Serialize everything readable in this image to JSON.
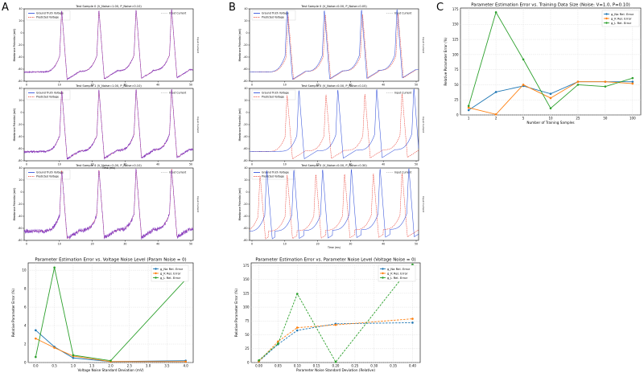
{
  "panel_labels": {
    "a": "A",
    "b": "B",
    "c": "C"
  },
  "colors": {
    "blue": "#1f3fd6",
    "orange": "#ff7f0e",
    "green": "#2ca02c",
    "predicted": "#e8392e",
    "teal": "#1f77b4",
    "purple": "#7b2fbe"
  },
  "chart_data": [
    {
      "id": "a1",
      "type": "line",
      "title": "Test Sample 0 (V_Noise=1.00, P_Noise=0.10)",
      "ylabel": "Membrane Potential (mV)",
      "xlabel": "",
      "right_label": "Input Current",
      "legend": [
        "Ground Truth Voltage",
        "Predicted Voltage"
      ],
      "xlim": [
        0,
        50
      ],
      "ylim": [
        -80,
        40
      ],
      "yticks": [
        "-80",
        "-60",
        "-40",
        "-20",
        "0",
        "20",
        "40"
      ],
      "xticks": [
        "0",
        "10",
        "20",
        "30",
        "40",
        "50"
      ],
      "spike_times": [
        10.5,
        21.5,
        32.5,
        43.0
      ],
      "baseline_mv": -65,
      "peak_mv": 38,
      "offset_ms": 0,
      "noise_mv": 1.0
    },
    {
      "id": "a2",
      "type": "line",
      "title": "Test Sample 1 (V_Noise=1.00, P_Noise=0.10)",
      "ylabel": "Membrane Potential (mV)",
      "xlabel": "Time (ms)",
      "right_label": "Input Current",
      "legend": [
        "Ground Truth Voltage",
        "Predicted Voltage"
      ],
      "xlim": [
        0,
        50
      ],
      "ylim": [
        -80,
        40
      ],
      "yticks": [
        "-80",
        "-60",
        "-40",
        "-20",
        "0",
        "20",
        "40"
      ],
      "xticks": [
        "0",
        "10",
        "20",
        "30",
        "40",
        "50"
      ],
      "spike_times": [
        10.5,
        21.5,
        32.5,
        43.0
      ],
      "baseline_mv": -65,
      "peak_mv": 38,
      "offset_ms": 0,
      "noise_mv": 2.0
    },
    {
      "id": "a3",
      "type": "line",
      "title": "Test Sample 4 (V_Noise=2.00, P_Noise=0.10)",
      "ylabel": "Membrane Potential (mV)",
      "xlabel": "",
      "right_label": "Input Current",
      "legend": [
        "Ground Truth Voltage",
        "Predicted Voltage"
      ],
      "xlim": [
        0,
        50
      ],
      "ylim": [
        -80,
        40
      ],
      "yticks": [
        "-80",
        "-60",
        "-40",
        "-20",
        "0",
        "20",
        "40"
      ],
      "xticks": [
        "0",
        "10",
        "20",
        "30",
        "40",
        "50"
      ],
      "spike_times": [
        10.5,
        21.5,
        32.5,
        43.0
      ],
      "baseline_mv": -65,
      "peak_mv": 38,
      "offset_ms": 0,
      "noise_mv": 3.5
    },
    {
      "id": "b1",
      "type": "line",
      "title": "Test Sample 0 (V_Noise=0.00, P_Noise=0.05)",
      "ylabel": "Membrane Potential (mV)",
      "xlabel": "",
      "right_label": "Input Current",
      "legend": [
        "Ground Truth Voltage",
        "Predicted Voltage"
      ],
      "xlim": [
        0,
        50
      ],
      "ylim": [
        -80,
        40
      ],
      "yticks": [
        "-80",
        "-60",
        "-40",
        "-20",
        "0",
        "20",
        "40"
      ],
      "xticks": [
        "0",
        "10",
        "20",
        "30",
        "40",
        "50"
      ],
      "spike_times": [
        10.5,
        21.5,
        32.5,
        43.0
      ],
      "baseline_mv": -65,
      "peak_mv": 38,
      "offset_ms": 0.3,
      "noise_mv": 0
    },
    {
      "id": "b2",
      "type": "line",
      "title": "Test Sample 0 (V_Noise=0.00, P_Noise=0.10)",
      "ylabel": "Membrane Potential (mV)",
      "xlabel": "",
      "right_label": "Input Current",
      "legend": [
        "Ground Truth Voltage",
        "Predicted Voltage"
      ],
      "xlim": [
        0,
        50
      ],
      "ylim": [
        -80,
        40
      ],
      "yticks": [
        "-80",
        "-60",
        "-40",
        "-20",
        "0",
        "20",
        "40"
      ],
      "xticks": [
        "0",
        "10",
        "20",
        "30",
        "40",
        "50"
      ],
      "spike_times": [
        14.0,
        25.5,
        37.0,
        48.0
      ],
      "baseline_mv": -65,
      "peak_mv": 38,
      "offset_ms": -3.5,
      "noise_mv": 0
    },
    {
      "id": "b3",
      "type": "line",
      "title": "Test Sample 0 (V_Noise=0.00, P_Noise=0.30)",
      "ylabel": "Membrane Potential (mV)",
      "xlabel": "Time (ms)",
      "right_label": "Input Current",
      "legend": [
        "Ground Truth Voltage",
        "Predicted Voltage"
      ],
      "xlim": [
        0,
        50
      ],
      "ylim": [
        -80,
        40
      ],
      "yticks": [
        "-80",
        "-60",
        "-40",
        "-20",
        "0",
        "20",
        "40"
      ],
      "xticks": [
        "0",
        "10",
        "20",
        "30",
        "40",
        "50"
      ],
      "spike_times": [
        4.5,
        12.5,
        21.0,
        29.5,
        38.0,
        46.5
      ],
      "baseline_mv": -65,
      "peak_mv": 38,
      "offset_ms": -2.0,
      "noise_mv": 0
    },
    {
      "id": "a4",
      "type": "line",
      "title": "Parameter Estimation Error vs. Voltage Noise Level (Param Noise = 0)",
      "xlabel": "Voltage Noise Standard Deviation (mV)",
      "ylabel": "Relative Parameter Error (%)",
      "x": [
        0.0,
        0.5,
        1.0,
        2.0,
        4.0
      ],
      "xlim": [
        -0.2,
        4.2
      ],
      "ylim": [
        0,
        10.8
      ],
      "xticks": [
        "0.0",
        "0.5",
        "1.0",
        "1.5",
        "2.0",
        "2.5",
        "3.0",
        "3.5",
        "4.0"
      ],
      "yticks": [
        "0",
        "2",
        "4",
        "6",
        "8",
        "10"
      ],
      "dashed": false,
      "series": [
        {
          "name": "g_Na Rel. Error",
          "values": [
            3.5,
            1.7,
            0.5,
            0.1,
            0.2
          ]
        },
        {
          "name": "g_K Rel. Error",
          "values": [
            2.6,
            1.6,
            0.7,
            0.1,
            0.1
          ]
        },
        {
          "name": "g_L Rel. Error",
          "values": [
            0.6,
            10.3,
            0.8,
            0.2,
            9.0
          ]
        }
      ]
    },
    {
      "id": "b4",
      "type": "line",
      "title": "Parameter Estimation Error vs. Parameter Noise Level (Voltage Noise = 0)",
      "xlabel": "Parameter Noise Standard Deviation (Relative)",
      "ylabel": "Relative Parameter Error (%)",
      "x": [
        0.0,
        0.05,
        0.1,
        0.2,
        0.4
      ],
      "xlim": [
        -0.02,
        0.42
      ],
      "ylim": [
        0,
        180
      ],
      "xticks": [
        "0.00",
        "0.05",
        "0.10",
        "0.15",
        "0.20",
        "0.25",
        "0.30",
        "0.35",
        "0.40"
      ],
      "yticks": [
        "0",
        "25",
        "50",
        "75",
        "100",
        "125",
        "150",
        "175"
      ],
      "dashed": true,
      "series": [
        {
          "name": "g_Na Rel. Error",
          "values": [
            2,
            33,
            58,
            70,
            72
          ]
        },
        {
          "name": "g_K Rel. Error",
          "values": [
            2,
            38,
            63,
            68,
            79
          ]
        },
        {
          "name": "g_L Rel. Error",
          "values": [
            4,
            34,
            124,
            1,
            177
          ]
        }
      ]
    },
    {
      "id": "c",
      "type": "line",
      "title": "Parameter Estimation Error vs. Training Data Size (Noise: V=1.0, P=0.10)",
      "xlabel": "Number of Training Samples",
      "ylabel": "Relative Parameter Error (%)",
      "categories": [
        "1",
        "2",
        "5",
        "10",
        "25",
        "50",
        "100"
      ],
      "ylim": [
        0,
        177
      ],
      "yticks": [
        "0",
        "25",
        "50",
        "75",
        "100",
        "125",
        "150",
        "175"
      ],
      "dashed": false,
      "series": [
        {
          "name": "g_Na Rel. Error",
          "values": [
            8,
            38,
            48,
            35,
            55,
            55,
            55
          ]
        },
        {
          "name": "g_K Rel. Error",
          "values": [
            12,
            1,
            50,
            28,
            55,
            55,
            52
          ]
        },
        {
          "name": "g_L Rel. Error",
          "values": [
            15,
            170,
            92,
            11,
            50,
            47,
            61
          ]
        }
      ]
    }
  ]
}
